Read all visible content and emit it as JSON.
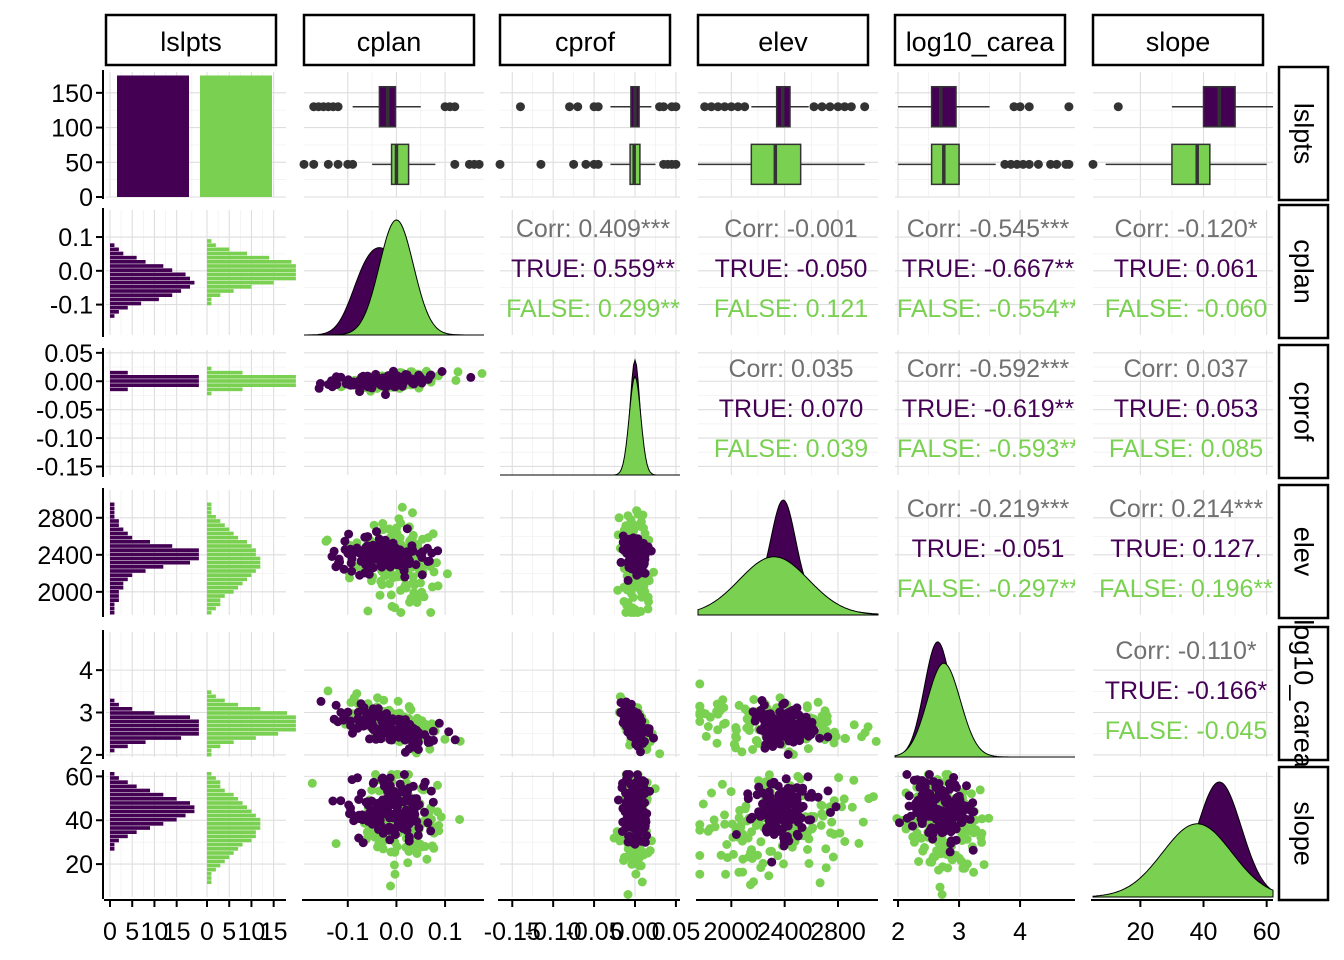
{
  "chart_data": {
    "type": "scatter",
    "variables": [
      "lslpts",
      "cplan",
      "cprof",
      "elev",
      "log10_carea",
      "slope"
    ],
    "group_variable": "lslpts",
    "groups": [
      {
        "name": "TRUE",
        "color": "#440154"
      },
      {
        "name": "FALSE",
        "color": "#7AD151"
      }
    ],
    "overall_color": "#707070",
    "top_strip_labels": [
      "lslpts",
      "cplan",
      "cprof",
      "elev",
      "log10_carea",
      "slope"
    ],
    "right_strip_labels": [
      "lslpts",
      "cplan",
      "cprof",
      "elev",
      "log10_carea",
      "slope"
    ],
    "bottom_tick_labels": [
      [
        "0",
        "5",
        "10",
        "15"
      ],
      [
        "-0.1",
        "0.0",
        "0.1"
      ],
      [
        "-0.15",
        "-0.10",
        "-0.05",
        "0.00",
        "0.05"
      ],
      [
        "2000",
        "2400",
        "2800"
      ],
      [
        "2",
        "3",
        "4"
      ],
      [
        "20",
        "40",
        "60"
      ]
    ],
    "left_tick_labels": [
      [
        "150",
        "100",
        "50",
        "0"
      ],
      [
        "0.1",
        "0.0",
        "-0.1"
      ],
      [
        "0.05",
        "0.00",
        "-0.05",
        "-0.10",
        "-0.15"
      ],
      [
        "2800",
        "2400",
        "2000"
      ],
      [
        "4",
        "3",
        "2"
      ],
      [
        "60",
        "40",
        "20"
      ]
    ],
    "ranges": {
      "cplan": [
        -0.19,
        0.18
      ],
      "cprof": [
        -0.165,
        0.055
      ],
      "elev": [
        1750,
        3100
      ],
      "log10_carea": [
        1.95,
        4.9
      ],
      "slope": [
        5,
        62
      ],
      "count": [
        0,
        180
      ]
    },
    "bar": {
      "categories": [
        "TRUE",
        "FALSE"
      ],
      "values": [
        175,
        175
      ]
    },
    "boxplots": {
      "cplan": {
        "TRUE": {
          "min": -0.09,
          "q1": -0.035,
          "median": -0.018,
          "q3": -0.002,
          "max": 0.05,
          "outliers": [
            -0.17,
            -0.16,
            -0.15,
            -0.14,
            -0.13,
            -0.12,
            0.1,
            0.11,
            0.12
          ]
        },
        "FALSE": {
          "min": -0.05,
          "q1": -0.01,
          "median": 0.0,
          "q3": 0.025,
          "max": 0.08,
          "outliers": [
            -0.19,
            -0.17,
            -0.14,
            -0.12,
            -0.1,
            -0.09,
            0.12,
            0.15,
            0.16,
            0.17
          ]
        }
      },
      "cprof": {
        "TRUE": {
          "min": -0.03,
          "q1": -0.005,
          "median": 0.0,
          "q3": 0.005,
          "max": 0.02,
          "outliers": [
            -0.14,
            -0.08,
            -0.07,
            -0.05,
            -0.045,
            0.03,
            0.035,
            0.045,
            0.05
          ]
        },
        "FALSE": {
          "min": -0.03,
          "q1": -0.006,
          "median": -0.001,
          "q3": 0.006,
          "max": 0.025,
          "outliers": [
            -0.165,
            -0.115,
            -0.075,
            -0.06,
            -0.05,
            -0.045,
            0.035,
            0.04,
            0.045,
            0.05
          ]
        }
      },
      "elev": {
        "TRUE": {
          "min": 2150,
          "q1": 2340,
          "median": 2385,
          "q3": 2440,
          "max": 2580,
          "outliers": [
            1800,
            1850,
            1900,
            1950,
            2000,
            2050,
            2100,
            2620,
            2680,
            2740,
            2800,
            2850,
            2900,
            3000
          ]
        },
        "FALSE": {
          "min": 1750,
          "q1": 2150,
          "median": 2330,
          "q3": 2520,
          "max": 3000,
          "outliers": []
        }
      },
      "log10_carea": {
        "TRUE": {
          "min": 2.0,
          "q1": 2.55,
          "median": 2.7,
          "q3": 2.95,
          "max": 3.5,
          "outliers": [
            3.9,
            4.0,
            4.15,
            4.8
          ]
        },
        "FALSE": {
          "min": 2.0,
          "q1": 2.55,
          "median": 2.75,
          "q3": 3.0,
          "max": 3.6,
          "outliers": [
            3.75,
            3.85,
            3.95,
            4.05,
            4.15,
            4.3,
            4.5,
            4.6,
            4.75,
            4.8
          ]
        }
      },
      "slope": {
        "TRUE": {
          "min": 30,
          "q1": 40,
          "median": 45,
          "q3": 50,
          "max": 62,
          "outliers": [
            13
          ]
        },
        "FALSE": {
          "min": 9,
          "q1": 30,
          "median": 38,
          "q3": 42,
          "max": 60,
          "outliers": [
            5
          ]
        }
      }
    },
    "correlations": [
      {
        "x": "cplan",
        "y": "cprof",
        "overall": "Corr: 0.409***",
        "TRUE": "TRUE: 0.559**",
        "FALSE": "FALSE: 0.299**"
      },
      {
        "x": "cplan",
        "y": "elev",
        "overall": "Corr: -0.001",
        "TRUE": "TRUE: -0.050",
        "FALSE": "FALSE: 0.121"
      },
      {
        "x": "cplan",
        "y": "log10_carea",
        "overall": "Corr: -0.545***",
        "TRUE": "TRUE: -0.667**",
        "FALSE": "FALSE: -0.554**"
      },
      {
        "x": "cplan",
        "y": "slope",
        "overall": "Corr: -0.120*",
        "TRUE": "TRUE: 0.061",
        "FALSE": "FALSE: -0.060"
      },
      {
        "x": "cprof",
        "y": "elev",
        "overall": "Corr: 0.035",
        "TRUE": "TRUE: 0.070",
        "FALSE": "FALSE: 0.039"
      },
      {
        "x": "cprof",
        "y": "log10_carea",
        "overall": "Corr: -0.592***",
        "TRUE": "TRUE: -0.619**",
        "FALSE": "FALSE: -0.593**"
      },
      {
        "x": "cprof",
        "y": "slope",
        "overall": "Corr: 0.037",
        "TRUE": "TRUE: 0.053",
        "FALSE": "FALSE: 0.085"
      },
      {
        "x": "elev",
        "y": "log10_carea",
        "overall": "Corr: -0.219***",
        "TRUE": "TRUE: -0.051",
        "FALSE": "FALSE: -0.297**"
      },
      {
        "x": "elev",
        "y": "slope",
        "overall": "Corr: 0.214***",
        "TRUE": "TRUE: 0.127.",
        "FALSE": "FALSE: 0.196**"
      },
      {
        "x": "log10_carea",
        "y": "slope",
        "overall": "Corr: -0.110*",
        "TRUE": "TRUE: -0.166*",
        "FALSE": "FALSE: -0.045"
      }
    ],
    "distributions": {
      "cplan": {
        "TRUE": {
          "mean": -0.02,
          "sd": 0.04,
          "mix": {
            "mean": -0.07,
            "sd": 0.03,
            "weight": 0.25
          }
        },
        "FALSE": {
          "mean": 0.0,
          "sd": 0.035
        }
      },
      "cprof": {
        "TRUE": {
          "mean": 0.0,
          "sd": 0.006
        },
        "FALSE": {
          "mean": 0.0,
          "sd": 0.007
        }
      },
      "elev": {
        "TRUE": {
          "mean": 2390,
          "sd": 90,
          "mix": {
            "mean": 2350,
            "sd": 300,
            "weight": 0.45
          }
        },
        "FALSE": {
          "mean": 2320,
          "sd": 260
        }
      },
      "log10_carea": {
        "TRUE": {
          "mean": 2.65,
          "sd": 0.22
        },
        "FALSE": {
          "mean": 2.75,
          "sd": 0.27
        }
      },
      "slope": {
        "TRUE": {
          "mean": 45,
          "sd": 7
        },
        "FALSE": {
          "mean": 38,
          "sd": 11
        }
      }
    },
    "grid": true,
    "legend": "none"
  }
}
